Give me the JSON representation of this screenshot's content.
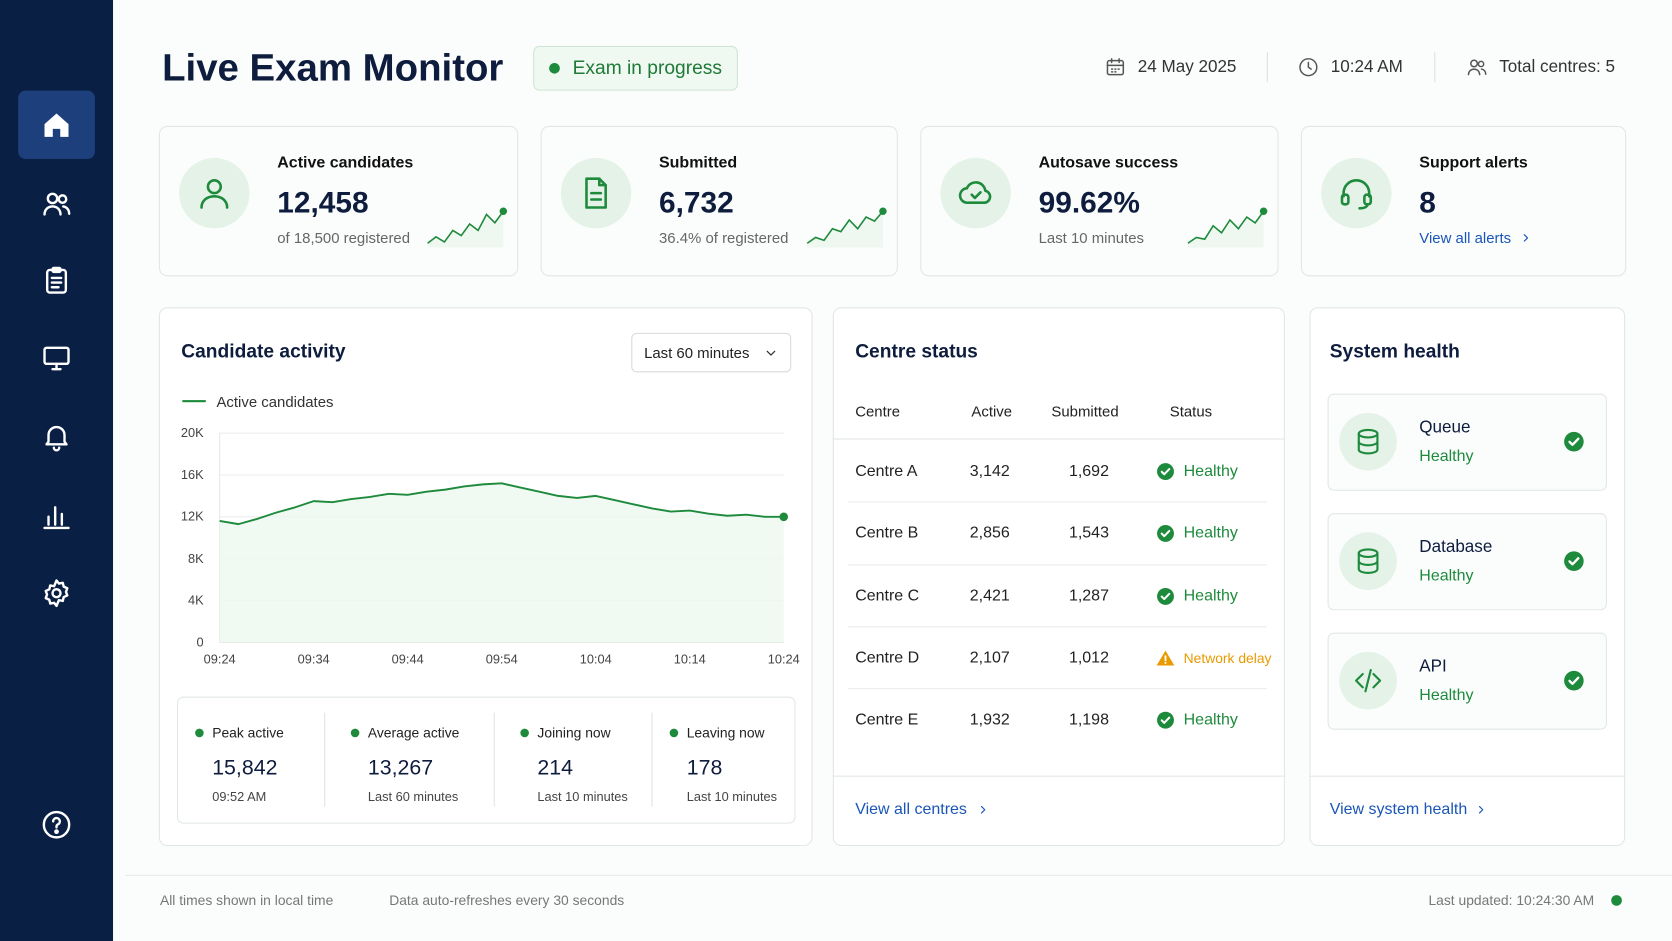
{
  "header": {
    "title": "Live Exam Monitor",
    "badge": "Exam in progress",
    "date": "24 May 2025",
    "time": "10:24 AM",
    "centres": "Total centres: 5"
  },
  "kpis": [
    {
      "label": "Active candidates",
      "value": "12,458",
      "note": "of 18,500 registered",
      "trend": [
        3,
        4,
        3.2,
        5,
        4.2,
        6,
        5,
        7.5,
        6.2,
        8
      ]
    },
    {
      "label": "Submitted",
      "value": "6,732",
      "note": "36.4% of registered",
      "trend": [
        2.5,
        3.5,
        3,
        5,
        4.5,
        6.5,
        5,
        7,
        6.3,
        8
      ]
    },
    {
      "label": "Autosave success",
      "value": "99.62%",
      "note": "Last 10 minutes",
      "trend": [
        2.5,
        3.5,
        3.2,
        5.5,
        4.3,
        6.5,
        5,
        7,
        6,
        8
      ]
    },
    {
      "label": "Support alerts",
      "value": "8",
      "link": "View all alerts"
    }
  ],
  "chart_data": {
    "type": "line",
    "title": "Candidate activity",
    "range": "Last 60 minutes",
    "categories": [
      "09:24",
      null,
      null,
      null,
      null,
      "09:34",
      null,
      null,
      null,
      null,
      "09:44",
      null,
      null,
      null,
      null,
      "09:54",
      null,
      null,
      null,
      null,
      "10:04",
      null,
      null,
      null,
      null,
      "10:14",
      null,
      null,
      null,
      null,
      "10:24"
    ],
    "series": [
      {
        "name": "Active candidates",
        "color": "#1e8a3c",
        "values": [
          11600,
          11300,
          11800,
          12400,
          12900,
          13500,
          13400,
          13700,
          13900,
          14200,
          14100,
          14400,
          14600,
          14900,
          15100,
          15200,
          14800,
          14400,
          14000,
          13800,
          14000,
          13600,
          13200,
          12800,
          12500,
          12600,
          12300,
          12100,
          12200,
          12000,
          12000
        ]
      }
    ],
    "ylim": [
      0,
      20000
    ],
    "yticks": [
      0,
      {
        "value": 4000,
        "label": "4K"
      },
      {
        "value": 8000,
        "label": "8K"
      },
      {
        "value": 12000,
        "label": "12K"
      },
      {
        "value": 16000,
        "label": "16K"
      },
      {
        "value": 20000,
        "label": "20K"
      }
    ],
    "grid": true
  },
  "stats": [
    {
      "label": "Peak active",
      "value": "15,842",
      "note": "09:52 AM"
    },
    {
      "label": "Average active",
      "value": "13,267",
      "note": "Last 60 minutes"
    },
    {
      "label": "Joining now",
      "value": "214",
      "note": "Last 10 minutes"
    },
    {
      "label": "Leaving now",
      "value": "178",
      "note": "Last 10 minutes"
    }
  ],
  "centres": {
    "title": "Centre status",
    "columns": [
      "Centre",
      "Active",
      "Submitted",
      "Status"
    ],
    "rows": [
      {
        "centre": "Centre A",
        "active": "3,142",
        "submitted": "1,692",
        "status": "Healthy",
        "icon": "check",
        "color": "#1e8a3c"
      },
      {
        "centre": "Centre B",
        "active": "2,856",
        "submitted": "1,543",
        "status": "Healthy",
        "icon": "check",
        "color": "#1e8a3c"
      },
      {
        "centre": "Centre C",
        "active": "2,421",
        "submitted": "1,287",
        "status": "Healthy",
        "icon": "check",
        "color": "#1e8a3c"
      },
      {
        "centre": "Centre D",
        "active": "2,107",
        "submitted": "1,012",
        "status": "Network delay",
        "icon": "warning",
        "color": "#e99a00"
      },
      {
        "centre": "Centre E",
        "active": "1,932",
        "submitted": "1,198",
        "status": "Healthy",
        "icon": "check",
        "color": "#1e8a3c"
      }
    ],
    "link": "View all centres"
  },
  "health": {
    "title": "System health",
    "items": [
      {
        "name": "Queue",
        "status": "Healthy",
        "icon": "database"
      },
      {
        "name": "Database",
        "status": "Healthy",
        "icon": "database"
      },
      {
        "name": "API",
        "status": "Healthy",
        "icon": "code"
      }
    ],
    "link": "View system health"
  },
  "footer": {
    "timezone": "All times shown in local time",
    "refresh": "Data auto-refreshes every 30 seconds",
    "updated": "Last updated: 10:24:30 AM"
  }
}
